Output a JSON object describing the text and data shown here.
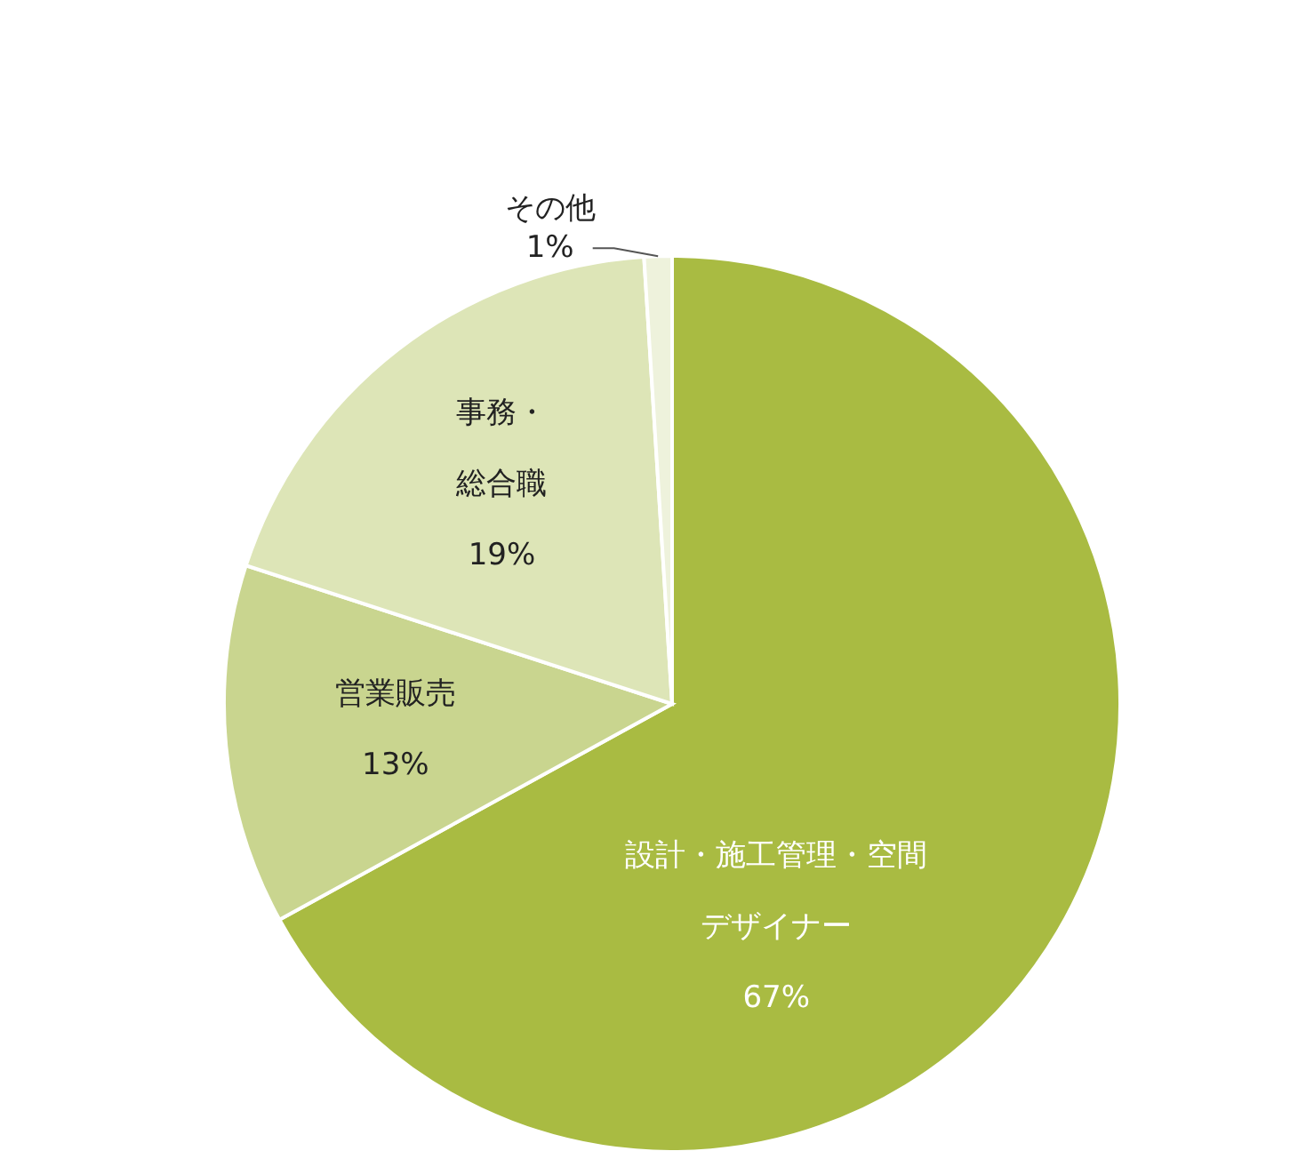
{
  "chart_data": {
    "type": "pie",
    "categories": [
      "設計・施工管理・空間デザイナー",
      "営業販売",
      "事務・総合職",
      "その他"
    ],
    "values": [
      67,
      13,
      19,
      1
    ],
    "colors": [
      "#a9bb42",
      "#c9d58f",
      "#dde5b7",
      "#eef2dc"
    ],
    "value_labels": [
      "67%",
      "13%",
      "19%",
      "1%"
    ]
  }
}
